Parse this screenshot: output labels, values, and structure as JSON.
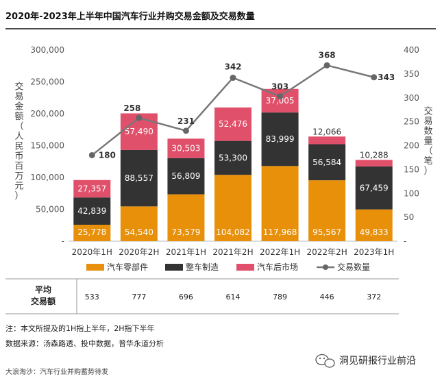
{
  "chart_data": {
    "type": "bar",
    "stacked": true,
    "title": "2020年-2023年上半年中国汽车行业并购交易金额及交易数量",
    "categories": [
      "2020年1H",
      "2020年2H",
      "2021年1H",
      "2021年2H",
      "2022年1H",
      "2022年2H",
      "2023年1H"
    ],
    "ylabel": "交易金额（人民币百万元）",
    "y2label": "交易数量（笔）",
    "ylim": [
      0,
      300000
    ],
    "y2lim": [
      0,
      400
    ],
    "yticks": [
      "-",
      "50,000",
      "100,000",
      "150,000",
      "200,000",
      "250,000",
      "300,000"
    ],
    "y2ticks": [
      "-",
      "50",
      "100",
      "150",
      "200",
      "250",
      "300",
      "350",
      "400"
    ],
    "series": [
      {
        "name": "汽车零部件",
        "color": "#E8900A",
        "values": [
          25778,
          54540,
          73579,
          104082,
          117968,
          95567,
          49833
        ],
        "labels": [
          "25,778",
          "54,540",
          "73,579",
          "104,082",
          "117,968",
          "95,567",
          "49,833"
        ]
      },
      {
        "name": "整车制造",
        "color": "#333333",
        "values": [
          42839,
          88557,
          56809,
          53300,
          83999,
          56584,
          67459
        ],
        "labels": [
          "42,839",
          "88,557",
          "56,809",
          "53,300",
          "83,999",
          "56,584",
          "67,459"
        ]
      },
      {
        "name": "汽车后市场",
        "color": "#E0506A",
        "values": [
          27357,
          57490,
          30503,
          52476,
          37005,
          12066,
          10288
        ],
        "labels": [
          "27,357",
          "57,490",
          "30,503",
          "52,476",
          "37,005",
          "12,066",
          "10,288"
        ]
      }
    ],
    "line_series": {
      "name": "交易数量",
      "color": "#777777",
      "values": [
        180,
        258,
        231,
        342,
        303,
        368,
        343
      ],
      "labels": [
        "180",
        "258",
        "231",
        "342",
        "303",
        "368",
        "343"
      ]
    },
    "legend_position": "bottom"
  },
  "avg_table": {
    "title_line1": "平均",
    "title_line2": "交易额",
    "values": [
      "533",
      "777",
      "696",
      "614",
      "789",
      "446",
      "372"
    ]
  },
  "notes": {
    "line1": "注：本文所提及的1H指上半年，2H指下半年",
    "line2": "数据来源：汤森路透、投中数据，普华永道分析"
  },
  "brand": "洞见研报行业前沿",
  "footer": "大浪淘沙：汽车行业并购蓄势待发"
}
